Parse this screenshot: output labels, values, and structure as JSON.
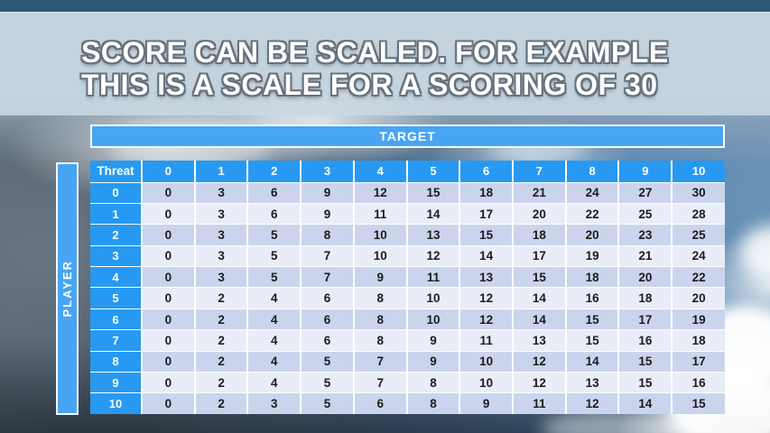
{
  "slide": {
    "title_line1": "SCORE CAN BE SCALED. FOR EXAMPLE",
    "title_line2": "THIS IS A SCALE FOR A SCORING OF 30"
  },
  "matrix": {
    "target_label": "TARGET",
    "player_label": "PLAYER",
    "corner_label": "Threat",
    "column_headers": [
      "0",
      "1",
      "2",
      "3",
      "4",
      "5",
      "6",
      "7",
      "8",
      "9",
      "10"
    ],
    "rows": [
      {
        "threat": "0",
        "values": [
          0,
          3,
          6,
          9,
          12,
          15,
          18,
          21,
          24,
          27,
          30
        ]
      },
      {
        "threat": "1",
        "values": [
          0,
          3,
          6,
          9,
          11,
          14,
          17,
          20,
          22,
          25,
          28
        ]
      },
      {
        "threat": "2",
        "values": [
          0,
          3,
          5,
          8,
          10,
          13,
          15,
          18,
          20,
          23,
          25
        ]
      },
      {
        "threat": "3",
        "values": [
          0,
          3,
          5,
          7,
          10,
          12,
          14,
          17,
          19,
          21,
          24
        ]
      },
      {
        "threat": "4",
        "values": [
          0,
          3,
          5,
          7,
          9,
          11,
          13,
          15,
          18,
          20,
          22
        ]
      },
      {
        "threat": "5",
        "values": [
          0,
          2,
          4,
          6,
          8,
          10,
          12,
          14,
          16,
          18,
          20
        ]
      },
      {
        "threat": "6",
        "values": [
          0,
          2,
          4,
          6,
          8,
          10,
          12,
          14,
          15,
          17,
          19
        ]
      },
      {
        "threat": "7",
        "values": [
          0,
          2,
          4,
          6,
          8,
          9,
          11,
          13,
          15,
          16,
          18
        ]
      },
      {
        "threat": "8",
        "values": [
          0,
          2,
          4,
          5,
          7,
          9,
          10,
          12,
          14,
          15,
          17
        ]
      },
      {
        "threat": "9",
        "values": [
          0,
          2,
          4,
          5,
          7,
          8,
          10,
          12,
          13,
          15,
          16
        ]
      },
      {
        "threat": "10",
        "values": [
          0,
          2,
          3,
          5,
          6,
          8,
          9,
          11,
          12,
          14,
          15
        ]
      }
    ]
  },
  "colors": {
    "accent_blue": "#2799F2",
    "bar_blue": "#47A5F4",
    "stripe_dark": "#CBD4ED",
    "stripe_light": "#E9EDF8",
    "top_band": "#2D5877",
    "body_text": "#1C1C1E"
  }
}
